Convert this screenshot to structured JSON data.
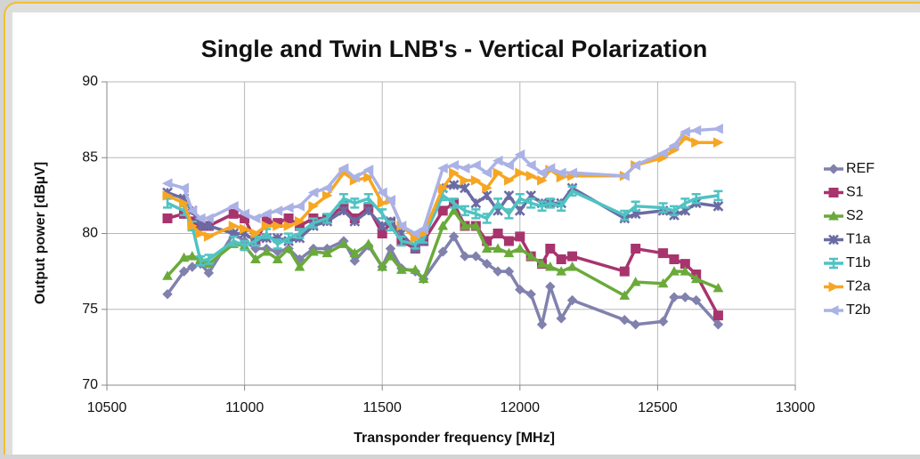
{
  "chart_data": {
    "type": "line",
    "title": "Single and Twin LNB's - Vertical Polarization",
    "x_label": "Transponder frequency [MHz]",
    "y_label": "Output power  [dBµV]",
    "x": [
      10720,
      10780,
      10810,
      10840,
      10870,
      10960,
      11000,
      11040,
      11080,
      11120,
      11160,
      11200,
      11250,
      11300,
      11360,
      11400,
      11450,
      11500,
      11530,
      11570,
      11620,
      11650,
      11720,
      11760,
      11800,
      11840,
      11880,
      11920,
      11960,
      12000,
      12040,
      12080,
      12110,
      12150,
      12190,
      12380,
      12420,
      12520,
      12560,
      12600,
      12640,
      12720
    ],
    "series": [
      {
        "name": "REF",
        "color": "#8181ae",
        "marker": "diamond",
        "values": [
          76,
          77.5,
          77.8,
          78,
          77.4,
          80,
          79.5,
          79,
          79,
          78.8,
          79,
          78.3,
          79,
          79,
          79.5,
          78.2,
          79.2,
          77.8,
          79,
          77.7,
          77.5,
          77,
          78.8,
          79.8,
          78.5,
          78.5,
          78,
          77.5,
          77.5,
          76.3,
          76,
          74,
          76.5,
          74.4,
          75.6,
          74.3,
          74,
          74.2,
          75.8,
          75.8,
          75.6,
          74
        ]
      },
      {
        "name": "S1",
        "color": "#a8346e",
        "marker": "square",
        "values": [
          81,
          81.3,
          80.8,
          80.5,
          80.5,
          81.3,
          81,
          79.5,
          80.8,
          80.7,
          81,
          80.5,
          81,
          81,
          81.8,
          81,
          81.7,
          80,
          80.7,
          79.5,
          79,
          79.5,
          81.5,
          82,
          80.5,
          80.5,
          79.5,
          80,
          79.5,
          79.8,
          78.5,
          78,
          79,
          78.3,
          78.5,
          77.5,
          79,
          78.7,
          78.3,
          78,
          77.3,
          74.6
        ]
      },
      {
        "name": "S2",
        "color": "#6aaa3a",
        "marker": "triangle",
        "values": [
          77.2,
          78.4,
          78.5,
          78.3,
          78,
          79.3,
          79.2,
          78.3,
          78.8,
          78.3,
          79,
          77.8,
          78.8,
          78.7,
          79.3,
          78.7,
          79.3,
          77.8,
          78.5,
          77.6,
          77.6,
          77,
          80.5,
          81.5,
          80.5,
          80.5,
          79,
          79,
          78.7,
          79,
          78.5,
          78,
          77.8,
          77.5,
          77.8,
          75.9,
          76.8,
          76.7,
          77.5,
          77.5,
          77,
          76.4
        ]
      },
      {
        "name": "T1a",
        "color": "#6b6ba3",
        "marker": "cross",
        "values": [
          82.7,
          82.3,
          81.5,
          80.5,
          80.5,
          80,
          80,
          79.5,
          79.7,
          79.7,
          79.5,
          79.7,
          80.5,
          80.8,
          81.5,
          80.8,
          81.5,
          80.5,
          80.8,
          80,
          79,
          79.5,
          83,
          83.2,
          83,
          82,
          82.5,
          81.5,
          82.5,
          81.5,
          82.5,
          82,
          82,
          82,
          83,
          81,
          81.3,
          81.5,
          81.2,
          81.5,
          82,
          81.8
        ]
      },
      {
        "name": "T1b",
        "color": "#4fc3c3",
        "marker": "dash",
        "values": [
          82,
          81.5,
          80.5,
          78.2,
          78.3,
          79.5,
          79.2,
          79.5,
          80,
          79.3,
          79.7,
          80,
          80.7,
          81,
          82.3,
          82,
          82.3,
          81.3,
          80.5,
          79.5,
          79.3,
          79.7,
          82.5,
          82,
          81.5,
          81.3,
          81,
          82,
          81.3,
          82.3,
          82,
          81.8,
          82,
          81.8,
          82.8,
          81.2,
          81.8,
          81.7,
          81.5,
          82,
          82.3,
          82.5
        ]
      },
      {
        "name": "T2a",
        "color": "#f6a623",
        "marker": "triangle-right",
        "values": [
          82.5,
          82,
          80.5,
          80,
          79.8,
          80.5,
          80.3,
          80,
          80.5,
          80.5,
          80.5,
          80.8,
          81.8,
          82.5,
          84,
          83.5,
          83.7,
          82,
          82.2,
          80.5,
          79.7,
          80,
          83,
          84,
          83.5,
          83.5,
          83,
          84,
          83.5,
          84,
          83.8,
          83.5,
          84.2,
          83.7,
          83.8,
          83.8,
          84.5,
          85,
          85.5,
          86.3,
          86,
          86
        ]
      },
      {
        "name": "T2b",
        "color": "#aab2e6",
        "marker": "triangle-left",
        "values": [
          83.3,
          83,
          81.5,
          81,
          81,
          81.8,
          81.3,
          81,
          81.3,
          81.5,
          81.7,
          81.8,
          82.7,
          83,
          84.3,
          83.7,
          84.2,
          82.7,
          82.2,
          80.5,
          80,
          80.3,
          84.3,
          84.5,
          84.3,
          84.5,
          84,
          84.8,
          84.5,
          85.2,
          84.5,
          84,
          84.3,
          84,
          84,
          83.8,
          84.5,
          85.3,
          85.8,
          86.7,
          86.8,
          86.9
        ]
      }
    ],
    "xlim": [
      10500,
      13000
    ],
    "xticks": [
      10500,
      11000,
      11500,
      12000,
      12500,
      13000
    ],
    "ylim": [
      70,
      90
    ],
    "yticks": [
      70,
      75,
      80,
      85,
      90
    ],
    "grid": true,
    "legend": "right"
  }
}
